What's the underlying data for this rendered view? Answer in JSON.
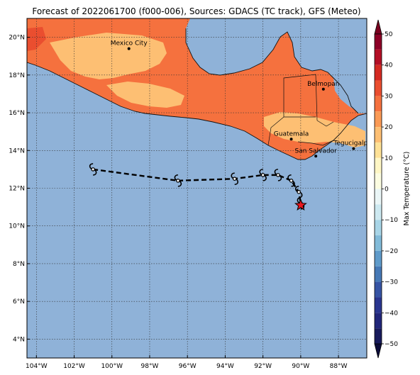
{
  "title": "Forecast of 2022061700 (f000-006), Sources: GDACS (TC track), GFS (Meteo)",
  "map": {
    "extent": {
      "lon_min": -104.5,
      "lon_max": -86.5,
      "lat_min": 3.0,
      "lat_max": 21.0
    },
    "ocean_color": "#8fb2d8",
    "lon_ticks": [
      {
        "value": -104,
        "label": "104°W"
      },
      {
        "value": -102,
        "label": "102°W"
      },
      {
        "value": -100,
        "label": "100°W"
      },
      {
        "value": -98,
        "label": "98°W"
      },
      {
        "value": -96,
        "label": "96°W"
      },
      {
        "value": -94,
        "label": "94°W"
      },
      {
        "value": -92,
        "label": "92°W"
      },
      {
        "value": -90,
        "label": "90°W"
      },
      {
        "value": -88,
        "label": "88°W"
      }
    ],
    "lat_ticks": [
      {
        "value": 4,
        "label": "4°N"
      },
      {
        "value": 6,
        "label": "6°N"
      },
      {
        "value": 8,
        "label": "8°N"
      },
      {
        "value": 10,
        "label": "10°N"
      },
      {
        "value": 12,
        "label": "12°N"
      },
      {
        "value": 14,
        "label": "14°N"
      },
      {
        "value": 16,
        "label": "16°N"
      },
      {
        "value": 18,
        "label": "18°N"
      },
      {
        "value": 20,
        "label": "20°N"
      }
    ],
    "cities": [
      {
        "name": "Mexico City",
        "lon": -99.1,
        "lat": 19.4
      },
      {
        "name": "Belmopan",
        "lon": -88.8,
        "lat": 17.25
      },
      {
        "name": "Guatemala",
        "lon": -90.5,
        "lat": 14.6
      },
      {
        "name": "Tegucigalpa",
        "lon": -87.2,
        "lat": 14.1
      },
      {
        "name": "San Salvador",
        "lon": -89.2,
        "lat": 13.7
      }
    ],
    "track": [
      {
        "lon": -101.0,
        "lat": 13.0
      },
      {
        "lon": -96.5,
        "lat": 12.4
      },
      {
        "lon": -93.5,
        "lat": 12.5
      },
      {
        "lon": -92.0,
        "lat": 12.7
      },
      {
        "lon": -91.2,
        "lat": 12.7
      },
      {
        "lon": -90.5,
        "lat": 12.4
      },
      {
        "lon": -90.1,
        "lat": 11.8
      },
      {
        "lon": -90.0,
        "lat": 11.2
      }
    ],
    "track_symbol": "tropical-cyclone-icon",
    "current_position": {
      "lon": -90.0,
      "lat": 11.1,
      "symbol": "star-icon",
      "color": "#e8171e"
    }
  },
  "colorbar": {
    "label": "Max Temperature (°C)",
    "ticks": [
      {
        "value": 50,
        "label": "50"
      },
      {
        "value": 40,
        "label": "40"
      },
      {
        "value": 30,
        "label": "30"
      },
      {
        "value": 20,
        "label": "20"
      },
      {
        "value": 10,
        "label": "10"
      },
      {
        "value": 0,
        "label": "0"
      },
      {
        "value": -10,
        "label": "−10"
      },
      {
        "value": -20,
        "label": "−20"
      },
      {
        "value": -30,
        "label": "−30"
      },
      {
        "value": -40,
        "label": "−40"
      },
      {
        "value": -50,
        "label": "−50"
      }
    ],
    "bands": [
      {
        "from": 45,
        "to": 50,
        "color": "#8d0027"
      },
      {
        "from": 40,
        "to": 45,
        "color": "#b30f26"
      },
      {
        "from": 35,
        "to": 40,
        "color": "#d42a22"
      },
      {
        "from": 30,
        "to": 35,
        "color": "#ea4e2f"
      },
      {
        "from": 25,
        "to": 30,
        "color": "#f5713e"
      },
      {
        "from": 20,
        "to": 25,
        "color": "#fa9a55"
      },
      {
        "from": 15,
        "to": 20,
        "color": "#fdbf73"
      },
      {
        "from": 10,
        "to": 15,
        "color": "#fee196"
      },
      {
        "from": 5,
        "to": 10,
        "color": "#fff7c5"
      },
      {
        "from": 0,
        "to": 5,
        "color": "#fcfde1"
      },
      {
        "from": -5,
        "to": 0,
        "color": "#eaf6f7"
      },
      {
        "from": -10,
        "to": -5,
        "color": "#cde9f1"
      },
      {
        "from": -15,
        "to": -10,
        "color": "#a8d5e7"
      },
      {
        "from": -20,
        "to": -15,
        "color": "#82bbd9"
      },
      {
        "from": -25,
        "to": -20,
        "color": "#5f9bca"
      },
      {
        "from": -30,
        "to": -25,
        "color": "#4679b6"
      },
      {
        "from": -35,
        "to": -30,
        "color": "#3654a4"
      },
      {
        "from": -40,
        "to": -35,
        "color": "#2a3690"
      },
      {
        "from": -45,
        "to": -40,
        "color": "#21267a"
      },
      {
        "from": -50,
        "to": -45,
        "color": "#181b5c"
      }
    ],
    "extend_top_color": "#7a0020",
    "extend_bottom_color": "#0c0c3a"
  }
}
